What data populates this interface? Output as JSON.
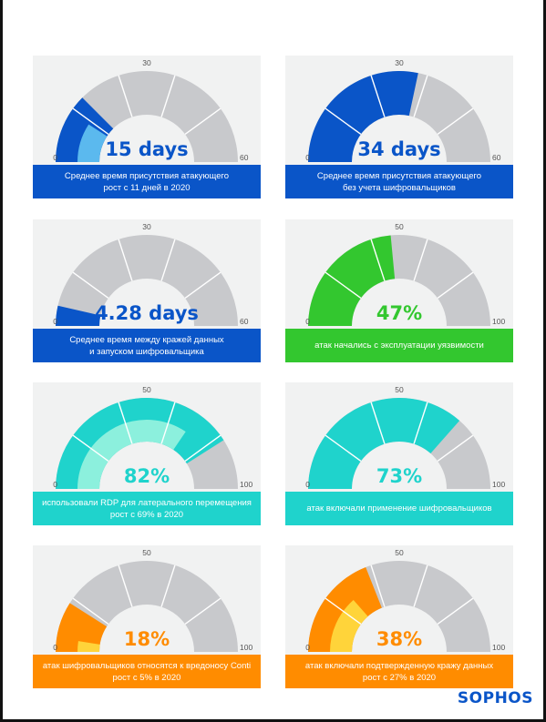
{
  "colors": {
    "blue": "#0a55c8",
    "light_blue": "#5bb9ee",
    "green": "#33c72f",
    "teal": "#1fd3cc",
    "light_teal": "#8cf0dd",
    "orange": "#ff8c00",
    "yellow": "#ffd43a",
    "track": "#c8c9cc",
    "bg": "#f1f2f2"
  },
  "brand": {
    "logo_text": "SOPHOS"
  },
  "chart_data": [
    {
      "type": "gauge",
      "min": 0,
      "mid": 30,
      "max": 60,
      "tick_labels": [
        "0",
        "30",
        "60"
      ],
      "value": 15,
      "value_unit": "days",
      "secondary_value": 11,
      "display": "15 days",
      "color": "blue",
      "secondary_color": "light_blue",
      "caption": [
        "Среднее время присутствия атакующего",
        "рост с 11 дней в 2020"
      ]
    },
    {
      "type": "gauge",
      "min": 0,
      "mid": 30,
      "max": 60,
      "tick_labels": [
        "0",
        "30",
        "60"
      ],
      "value": 34,
      "value_unit": "days",
      "display": "34 days",
      "color": "blue",
      "caption": [
        "Среднее время присутствия атакующего",
        "без учета шифровальщиков"
      ]
    },
    {
      "type": "gauge",
      "min": 0,
      "mid": 30,
      "max": 60,
      "tick_labels": [
        "0",
        "30",
        "60"
      ],
      "value": 4.28,
      "value_unit": "days",
      "display": "4.28 days",
      "color": "blue",
      "caption": [
        "Среднее время между кражей данных",
        "и запуском шифровальщика"
      ]
    },
    {
      "type": "gauge",
      "min": 0,
      "mid": 50,
      "max": 100,
      "tick_labels": [
        "0",
        "50",
        "100"
      ],
      "value": 47,
      "value_unit": "%",
      "display": "47%",
      "color": "green",
      "caption": [
        "атак начались с эксплуатации уязвимости"
      ]
    },
    {
      "type": "gauge",
      "min": 0,
      "mid": 50,
      "max": 100,
      "tick_labels": [
        "0",
        "50",
        "100"
      ],
      "value": 82,
      "value_unit": "%",
      "secondary_value": 69,
      "display": "82%",
      "color": "teal",
      "secondary_color": "light_teal",
      "caption": [
        "использовали RDP для латерального перемещения",
        "рост с 69% в 2020"
      ]
    },
    {
      "type": "gauge",
      "min": 0,
      "mid": 50,
      "max": 100,
      "tick_labels": [
        "0",
        "50",
        "100"
      ],
      "value": 73,
      "value_unit": "%",
      "display": "73%",
      "color": "teal",
      "caption": [
        "атак включали применение шифровальщиков"
      ]
    },
    {
      "type": "gauge",
      "min": 0,
      "mid": 50,
      "max": 100,
      "tick_labels": [
        "0",
        "50",
        "100"
      ],
      "value": 18,
      "value_unit": "%",
      "secondary_value": 5,
      "display": "18%",
      "color": "orange",
      "secondary_color": "yellow",
      "caption": [
        "атак шифровальщиков относятся к вредоносу Conti",
        "рост с 5% в 2020"
      ]
    },
    {
      "type": "gauge",
      "min": 0,
      "mid": 50,
      "max": 100,
      "tick_labels": [
        "0",
        "50",
        "100"
      ],
      "value": 38,
      "value_unit": "%",
      "secondary_value": 27,
      "display": "38%",
      "color": "orange",
      "secondary_color": "yellow",
      "caption": [
        "атак включали подтвержденную кражу данных",
        "рост с 27% в 2020"
      ]
    }
  ]
}
